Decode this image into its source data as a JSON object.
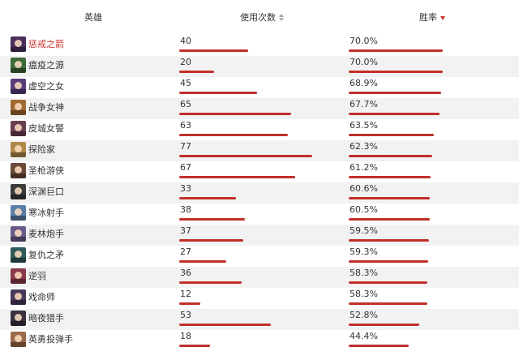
{
  "header": {
    "hero_label": "英雄",
    "uses_label": "使用次数",
    "winrate_label": "胜率",
    "sorted_by": "winrate",
    "sort_direction": "desc"
  },
  "colors": {
    "bar": "#c0302b",
    "highlight_text": "#c8312c",
    "stripe": "#f2f2f2"
  },
  "max_uses": 77,
  "max_winrate": 70.0,
  "rows": [
    {
      "name": "惩戒之箭",
      "uses": "40",
      "winrate": "70.0%",
      "highlight": true,
      "avatar": "#4a2f5c"
    },
    {
      "name": "瘟疫之源",
      "uses": "20",
      "winrate": "70.0%",
      "highlight": false,
      "avatar": "#3f6b3a"
    },
    {
      "name": "虚空之女",
      "uses": "45",
      "winrate": "68.9%",
      "highlight": false,
      "avatar": "#5a3d7a"
    },
    {
      "name": "战争女神",
      "uses": "65",
      "winrate": "67.7%",
      "highlight": false,
      "avatar": "#a06a32"
    },
    {
      "name": "皮城女警",
      "uses": "63",
      "winrate": "63.5%",
      "highlight": false,
      "avatar": "#6b3f52"
    },
    {
      "name": "探险家",
      "uses": "77",
      "winrate": "62.3%",
      "highlight": false,
      "avatar": "#b08a4a"
    },
    {
      "name": "圣枪游侠",
      "uses": "67",
      "winrate": "61.2%",
      "highlight": false,
      "avatar": "#6a4a3a"
    },
    {
      "name": "深渊巨口",
      "uses": "33",
      "winrate": "60.6%",
      "highlight": false,
      "avatar": "#3a3a3a"
    },
    {
      "name": "寒冰射手",
      "uses": "38",
      "winrate": "60.5%",
      "highlight": false,
      "avatar": "#5a7fa8"
    },
    {
      "name": "麦林炮手",
      "uses": "37",
      "winrate": "59.5%",
      "highlight": false,
      "avatar": "#6a5a8a"
    },
    {
      "name": "复仇之矛",
      "uses": "27",
      "winrate": "59.3%",
      "highlight": false,
      "avatar": "#2f5a5a"
    },
    {
      "name": "逆羽",
      "uses": "36",
      "winrate": "58.3%",
      "highlight": false,
      "avatar": "#8a3a4a"
    },
    {
      "name": "戏命师",
      "uses": "12",
      "winrate": "58.3%",
      "highlight": false,
      "avatar": "#4a3a5a"
    },
    {
      "name": "暗夜猎手",
      "uses": "53",
      "winrate": "52.8%",
      "highlight": false,
      "avatar": "#3a3040"
    },
    {
      "name": "英勇投弹手",
      "uses": "18",
      "winrate": "44.4%",
      "highlight": false,
      "avatar": "#9a6a4a"
    }
  ]
}
